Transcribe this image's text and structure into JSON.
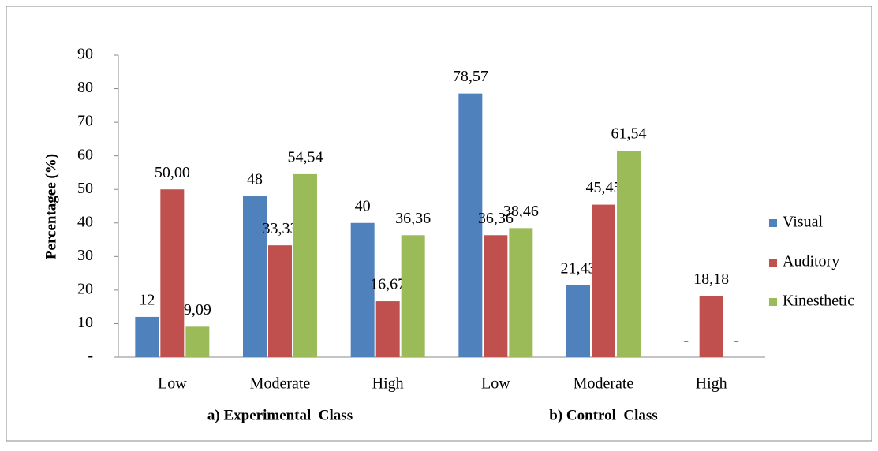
{
  "chart_data": {
    "type": "bar",
    "y_label": "Percentagee (%)",
    "categories": [
      "Low",
      "Moderate",
      "High",
      "Low",
      "Moderate",
      "High"
    ],
    "groups": [
      "a) Experimental  Class",
      "b) Control  Class"
    ],
    "series": [
      {
        "name": "Visual",
        "color": "#4f81bd",
        "values": [
          12,
          48,
          40,
          78.57,
          21.43,
          0
        ],
        "value_labels": [
          "12",
          "48",
          "40",
          "78,57",
          "21,43",
          "-"
        ]
      },
      {
        "name": "Auditory",
        "color": "#c0504d",
        "values": [
          50,
          33.33,
          16.67,
          36.36,
          45.45,
          18.18
        ],
        "value_labels": [
          "50,00",
          "33,33",
          "16,67",
          "36,36",
          "45,45",
          "18,18"
        ]
      },
      {
        "name": "Kinesthetic",
        "color": "#9bbb59",
        "values": [
          9.09,
          54.54,
          36.36,
          38.46,
          61.54,
          0
        ],
        "value_labels": [
          "9,09",
          "54,54",
          "36,36",
          "38,46",
          "61,54",
          "-"
        ]
      }
    ],
    "ylim": [
      0,
      90
    ],
    "yticks": [
      {
        "value": 0,
        "label": "-"
      },
      10,
      20,
      30,
      40,
      50,
      60,
      70,
      80,
      90
    ],
    "legend": "right"
  }
}
